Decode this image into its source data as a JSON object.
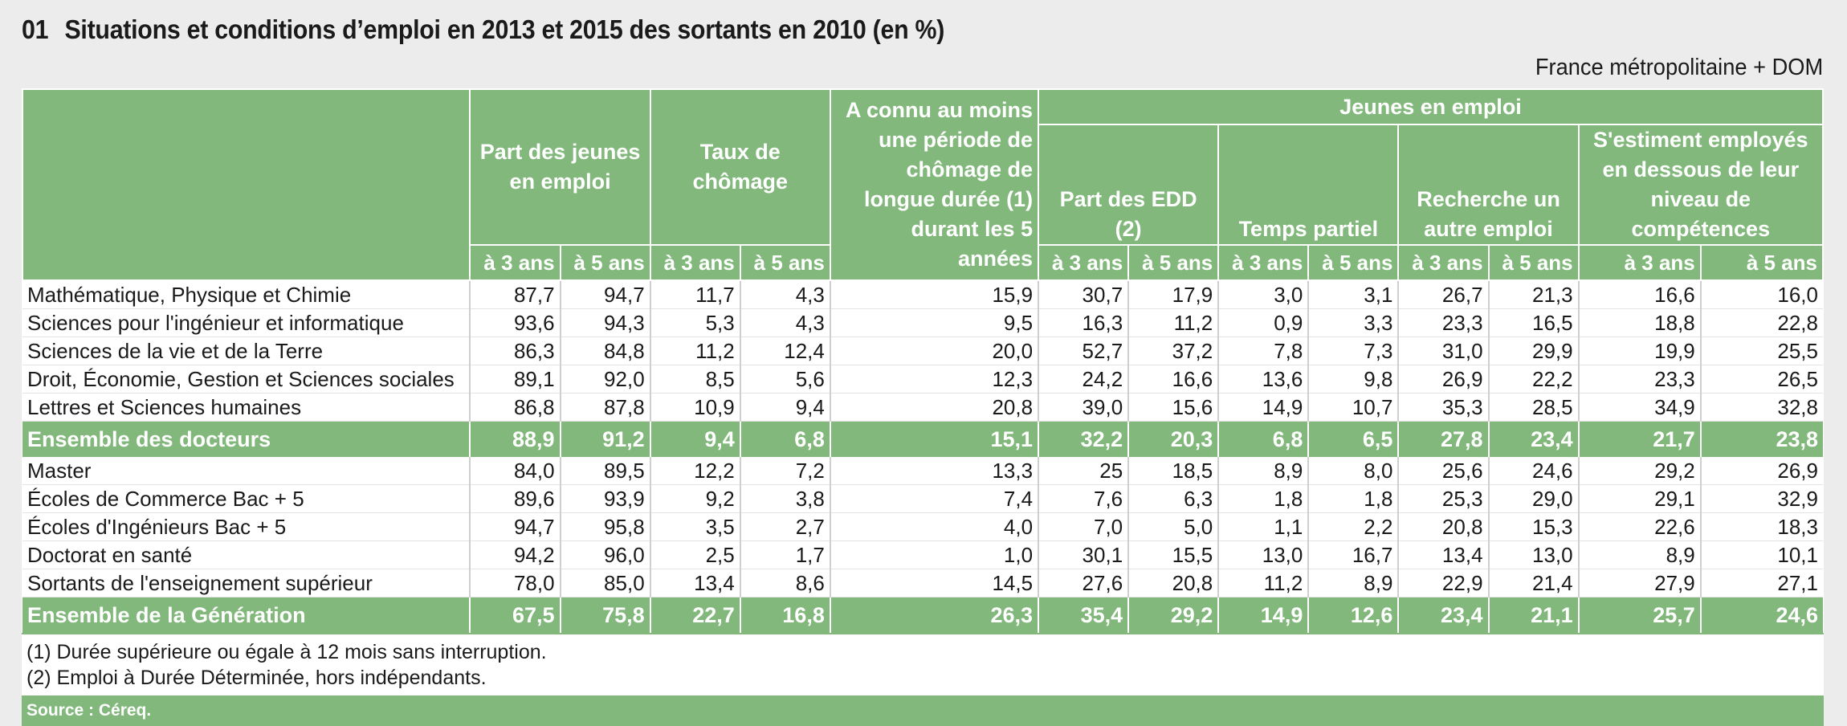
{
  "title": {
    "number": "01",
    "text": "Situations et conditions d’emploi en 2013 et 2015 des sortants en 2010 (en %)"
  },
  "region": "France métropolitaine + DOM",
  "headers": {
    "part_jeunes": "Part des jeunes en emploi",
    "taux_chomage": "Taux de chômage",
    "chomage_longue": "A connu au moins une période de chômage de longue durée (1) durant les 5 années",
    "jeunes_en_emploi": "Jeunes en emploi",
    "part_edd": "Part des EDD (2)",
    "temps_partiel": "Temps partiel",
    "recherche": "Recherche un autre emploi",
    "sestiment": "S'estiment employés en dessous de leur niveau de compétences",
    "a3": "à 3 ans",
    "a5": "à 5 ans"
  },
  "rows": [
    {
      "label": "Mathématique, Physique et Chimie",
      "values": [
        "87,7",
        "94,7",
        "11,7",
        "4,3",
        "15,9",
        "30,7",
        "17,9",
        "3,0",
        "3,1",
        "26,7",
        "21,3",
        "16,6",
        "16,0"
      ]
    },
    {
      "label": "Sciences pour l'ingénieur et informatique",
      "values": [
        "93,6",
        "94,3",
        "5,3",
        "4,3",
        "9,5",
        "16,3",
        "11,2",
        "0,9",
        "3,3",
        "23,3",
        "16,5",
        "18,8",
        "22,8"
      ]
    },
    {
      "label": "Sciences de la vie et de la Terre",
      "values": [
        "86,3",
        "84,8",
        "11,2",
        "12,4",
        "20,0",
        "52,7",
        "37,2",
        "7,8",
        "7,3",
        "31,0",
        "29,9",
        "19,9",
        "25,5"
      ]
    },
    {
      "label": "Droit, Économie, Gestion et Sciences sociales",
      "values": [
        "89,1",
        "92,0",
        "8,5",
        "5,6",
        "12,3",
        "24,2",
        "16,6",
        "13,6",
        "9,8",
        "26,9",
        "22,2",
        "23,3",
        "26,5"
      ]
    },
    {
      "label": "Lettres et Sciences humaines",
      "values": [
        "86,8",
        "87,8",
        "10,9",
        "9,4",
        "20,8",
        "39,0",
        "15,6",
        "14,9",
        "10,7",
        "35,3",
        "28,5",
        "34,9",
        "32,8"
      ]
    },
    {
      "label": "Ensemble des docteurs",
      "total": true,
      "values": [
        "88,9",
        "91,2",
        "9,4",
        "6,8",
        "15,1",
        "32,2",
        "20,3",
        "6,8",
        "6,5",
        "27,8",
        "23,4",
        "21,7",
        "23,8"
      ]
    },
    {
      "label": "Master",
      "values": [
        "84,0",
        "89,5",
        "12,2",
        "7,2",
        "13,3",
        "25",
        "18,5",
        "8,9",
        "8,0",
        "25,6",
        "24,6",
        "29,2",
        "26,9"
      ]
    },
    {
      "label": "Écoles de Commerce Bac + 5",
      "values": [
        "89,6",
        "93,9",
        "9,2",
        "3,8",
        "7,4",
        "7,6",
        "6,3",
        "1,8",
        "1,8",
        "25,3",
        "29,0",
        "29,1",
        "32,9"
      ]
    },
    {
      "label": "Écoles d'Ingénieurs Bac + 5",
      "values": [
        "94,7",
        "95,8",
        "3,5",
        "2,7",
        "4,0",
        "7,0",
        "5,0",
        "1,1",
        "2,2",
        "20,8",
        "15,3",
        "22,6",
        "18,3"
      ]
    },
    {
      "label": "Doctorat en santé",
      "values": [
        "94,2",
        "96,0",
        "2,5",
        "1,7",
        "1,0",
        "30,1",
        "15,5",
        "13,0",
        "16,7",
        "13,4",
        "13,0",
        "8,9",
        "10,1"
      ]
    },
    {
      "label": "Sortants de l'enseignement supérieur",
      "values": [
        "78,0",
        "85,0",
        "13,4",
        "8,6",
        "14,5",
        "27,6",
        "20,8",
        "11,2",
        "8,9",
        "22,9",
        "21,4",
        "27,9",
        "27,1"
      ]
    },
    {
      "label": "Ensemble de la Génération",
      "total": true,
      "values": [
        "67,5",
        "75,8",
        "22,7",
        "16,8",
        "26,3",
        "35,4",
        "29,2",
        "14,9",
        "12,6",
        "23,4",
        "21,1",
        "25,7",
        "24,6"
      ]
    }
  ],
  "notes": [
    "(1) Durée supérieure ou égale à 12 mois sans interruption.",
    "(2) Emploi à Durée Déterminée, hors indépendants."
  ],
  "source": "Source : Céreq.",
  "colors": {
    "accent": "#82b87c",
    "background": "#ececec"
  }
}
